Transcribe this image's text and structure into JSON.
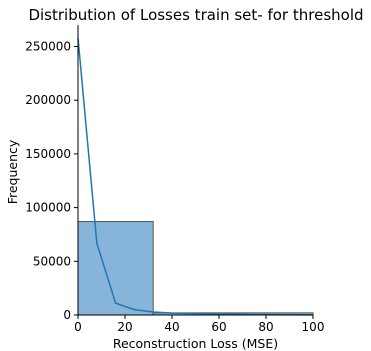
{
  "chart_data": {
    "type": "bar",
    "title": "Distribution of Losses train set- for threshold",
    "xlabel": "Reconstruction Loss (MSE)",
    "ylabel": "Frequency",
    "xlim": [
      0,
      100
    ],
    "ylim": [
      0,
      270000
    ],
    "xticks": [
      0,
      20,
      40,
      60,
      80,
      100
    ],
    "yticks": [
      0,
      50000,
      100000,
      150000,
      200000,
      250000
    ],
    "grid": false,
    "colors": {
      "bar_fill": "#86b5d9",
      "bar_edge": "#555555",
      "kde_line": "#1f77b4",
      "axis": "#000000"
    },
    "bins": [
      {
        "x_start": 0,
        "x_end": 32,
        "count": 87000
      },
      {
        "x_start": 32,
        "x_end": 100,
        "count": 2000
      }
    ],
    "kde": {
      "x": [
        0,
        8,
        16,
        24,
        32,
        40,
        50,
        60,
        70,
        80,
        90,
        100
      ],
      "y": [
        258000,
        67000,
        11000,
        5000,
        2800,
        1800,
        1300,
        900,
        600,
        400,
        200,
        100
      ]
    }
  }
}
